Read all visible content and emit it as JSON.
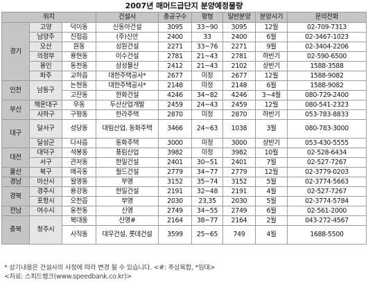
{
  "title": "2007년 매머드급단지 분양예정물량",
  "headers": [
    "위치",
    "건설사",
    "총공구수",
    "평형",
    "일반분양",
    "분양시기",
    "문의전화"
  ],
  "regions": {
    "gyeonggi": "경기",
    "incheon": "인천",
    "busan": "부산",
    "daegu": "대구",
    "daejeon": "대전",
    "ulsan": "울산",
    "gyeongnam": "경남",
    "gyeongbuk": "경북",
    "jeonnam": "전남",
    "chungbuk": "충북"
  },
  "rows": [
    {
      "area": "고양",
      "dong": "덕이동",
      "company": "신동아건설",
      "total": "3095",
      "size": "33~90",
      "general": "3095",
      "period": "12월",
      "phone": "02-709-7313"
    },
    {
      "area": "남양주",
      "dong": "진접읍",
      "company": "(주)신안",
      "total": "2400",
      "size": "33",
      "general": "2400",
      "period": "6월",
      "phone": "02-3467-1023"
    },
    {
      "area": "오산",
      "dong": "원동",
      "company": "성원건설",
      "total": "2271",
      "size": "33~76",
      "general": "2271",
      "period": "9월",
      "phone": "02-3404-2206"
    },
    {
      "area": "의정부",
      "dong": "용현동",
      "company": "이수건설",
      "total": "2781",
      "size": "21~43",
      "general": "2781",
      "period": "하반기",
      "phone": "02-590-6500"
    },
    {
      "area": "용인",
      "dong": "동천동",
      "company": "삼성물산",
      "total": "2412",
      "size": "21~43",
      "general": "2102",
      "period": "상반기",
      "phone": "1588-3588"
    },
    {
      "area": "파주",
      "dong": "교하읍",
      "company": "대한주택공사*",
      "total": "2677",
      "size": "미정",
      "general": "2677",
      "period": "12월",
      "phone": "1588-9082"
    },
    {
      "area": "남동구",
      "dong": "논현동",
      "company": "대한주택공사*",
      "total": "2148",
      "size": "미정",
      "general": "2148",
      "period": "6월",
      "phone": "1588-9082"
    },
    {
      "area": "",
      "dong": "고잔동",
      "company": "한화건설",
      "total": "4246",
      "size": "34~82",
      "general": "4246",
      "period": "3~4월",
      "phone": "080-729-2400"
    },
    {
      "area": "해운대구",
      "dong": "우동",
      "company": "두산산업개발",
      "total": "2459",
      "size": "24~43",
      "general": "2459",
      "period": "12월",
      "phone": "080-541-2323"
    },
    {
      "area": "사하구",
      "dong": "구평동",
      "company": "한라주택",
      "total": "2870",
      "size": "미정",
      "general": "2870",
      "period": "하반기",
      "phone": "053-783-8833"
    },
    {
      "area": "달서구",
      "dong": "성당동",
      "company": "대림산업, 동화주택",
      "total": "3466",
      "size": "24~63",
      "general": "1038",
      "period": "3월",
      "phone": "080-783-3000"
    },
    {
      "area": "달성군",
      "dong": "다사읍",
      "company": "동화주택",
      "total": "3000",
      "size": "미정",
      "general": "3000",
      "period": "상반기",
      "phone": "053-430-5555"
    },
    {
      "area": "대덕구",
      "dong": "석봉동",
      "company": "풍림산업",
      "total": "3982",
      "size": "미정",
      "general": "3982",
      "period": "10월",
      "phone": "02-528-6434"
    },
    {
      "area": "서구",
      "dong": "관저동",
      "company": "한일건설",
      "total": "2401",
      "size": "30~51",
      "general": "2401",
      "period": "7월",
      "phone": "02-527-7267"
    },
    {
      "area": "북구",
      "dong": "매곡동",
      "company": "월드건설",
      "total": "2779",
      "size": "34~77",
      "general": "2779",
      "period": "12월",
      "phone": "02-3779-0203"
    },
    {
      "area": "마산시",
      "dong": "월영동",
      "company": "부영",
      "total": "3152",
      "size": "35~74",
      "general": "3152",
      "period": "5월",
      "phone": "02-3774-5663"
    },
    {
      "area": "경주시",
      "dong": "용강동",
      "company": "한일건설",
      "total": "2191",
      "size": "32~48",
      "general": "2191",
      "period": "4월",
      "phone": "02-527-7267"
    },
    {
      "area": "포항시",
      "dong": "오천읍",
      "company": "부영",
      "total": "2030",
      "size": "23,35",
      "general": "2030",
      "period": "5월",
      "phone": "02-3774-5784"
    },
    {
      "area": "여수시",
      "dong": "웅천동",
      "company": "신영",
      "total": "2749",
      "size": "34~55",
      "general": "2749",
      "period": "6월",
      "phone": "02-561-2000"
    },
    {
      "area": "청주시",
      "dong": "복대동",
      "company": "신영#",
      "total": "2164",
      "size": "38~77",
      "general": "2164",
      "period": "2월",
      "phone": "043-272-4567"
    },
    {
      "area": "",
      "dong": "사직동",
      "company": "대우건설, 롯데건설",
      "total": "3599",
      "size": "25~65",
      "general": "749",
      "period": "4월",
      "phone": "1688-5500"
    }
  ],
  "note": "* 상기내용은 건설사의 사정에 따라 변경 될 수 있습니다. <#: 주상복합, *임대>",
  "source": "<자료: 스피드뱅크(www.speedbank.co.kr)>"
}
